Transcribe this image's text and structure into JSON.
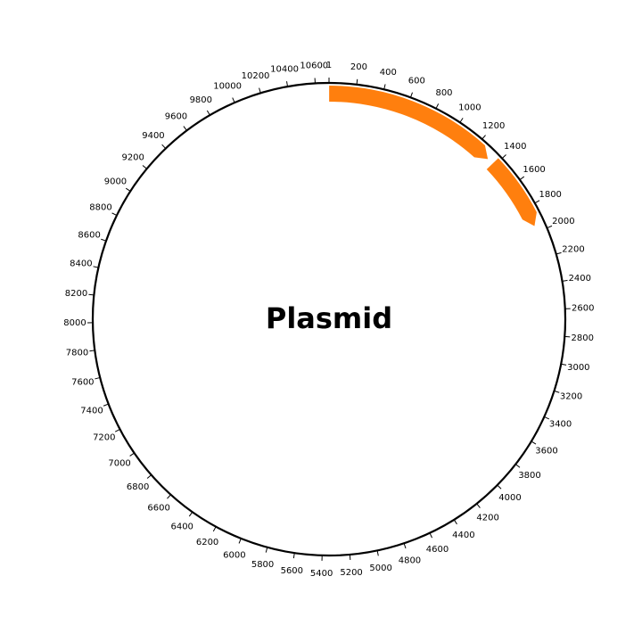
{
  "title": "Plasmid",
  "total_length": 10700,
  "ticks": {
    "first_label": "1",
    "step": 200,
    "last": 10600
  },
  "features": [
    {
      "start": 1,
      "end": 1330,
      "color": "#ff7f0e"
    },
    {
      "start": 1380,
      "end": 1950,
      "color": "#ff7f0e"
    }
  ],
  "colors": {
    "backbone": "#000000",
    "feature": "#ff7f0e"
  }
}
